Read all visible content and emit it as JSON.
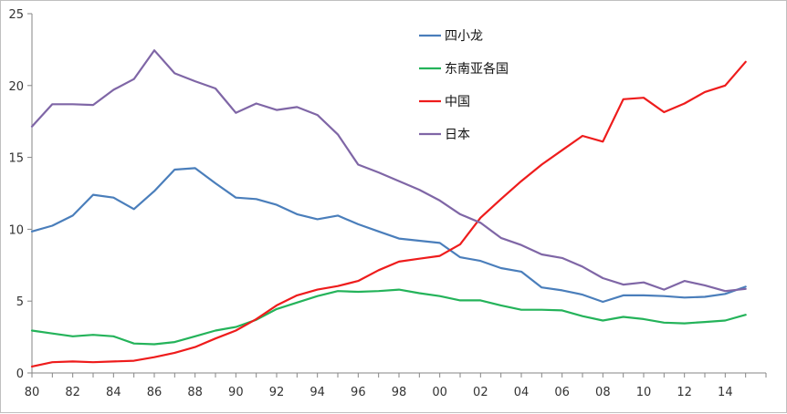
{
  "chart_data": {
    "type": "line",
    "title": "",
    "xlabel": "",
    "ylabel": "",
    "x": [
      1980,
      1981,
      1982,
      1983,
      1984,
      1985,
      1986,
      1987,
      1988,
      1989,
      1990,
      1991,
      1992,
      1993,
      1994,
      1995,
      1996,
      1997,
      1998,
      1999,
      2000,
      2001,
      2002,
      2003,
      2004,
      2005,
      2006,
      2007,
      2008,
      2009,
      2010,
      2011,
      2012,
      2013,
      2014,
      2015
    ],
    "x_tick_values": [
      1980,
      1982,
      1984,
      1986,
      1988,
      1990,
      1992,
      1994,
      1996,
      1998,
      2000,
      2002,
      2004,
      2006,
      2008,
      2010,
      2012,
      2014
    ],
    "x_tick_labels": [
      "80",
      "82",
      "84",
      "86",
      "88",
      "90",
      "92",
      "94",
      "96",
      "98",
      "00",
      "02",
      "04",
      "06",
      "08",
      "10",
      "12",
      "14"
    ],
    "y_ticks": [
      0,
      5,
      10,
      15,
      20,
      25
    ],
    "y_tick_labels": [
      "0",
      "5",
      "10",
      "15",
      "20",
      "25"
    ],
    "xlim": [
      1980,
      2016
    ],
    "ylim": [
      0,
      25
    ],
    "grid": false,
    "legend_position": "top-center",
    "series": [
      {
        "name": "四小龙",
        "color": "#4a7ebb",
        "values": [
          9.85,
          10.25,
          10.95,
          12.4,
          12.2,
          11.4,
          12.65,
          14.15,
          14.25,
          13.2,
          12.2,
          12.1,
          11.7,
          11.05,
          10.7,
          10.95,
          10.35,
          9.85,
          9.35,
          9.2,
          9.05,
          8.05,
          7.8,
          7.3,
          7.05,
          5.95,
          5.75,
          5.45,
          4.95,
          5.4,
          5.4,
          5.35,
          5.25,
          5.3,
          5.5,
          6.0
        ]
      },
      {
        "name": "东南亚各国",
        "color": "#24b35a",
        "values": [
          2.95,
          2.75,
          2.55,
          2.65,
          2.55,
          2.05,
          2.0,
          2.15,
          2.55,
          2.95,
          3.2,
          3.7,
          4.45,
          4.9,
          5.35,
          5.7,
          5.65,
          5.7,
          5.8,
          5.55,
          5.35,
          5.05,
          5.05,
          4.7,
          4.4,
          4.4,
          4.35,
          3.95,
          3.65,
          3.9,
          3.75,
          3.5,
          3.45,
          3.55,
          3.65,
          4.05
        ]
      },
      {
        "name": "中国",
        "color": "#ee1c1c",
        "values": [
          0.45,
          0.75,
          0.8,
          0.75,
          0.8,
          0.85,
          1.1,
          1.4,
          1.8,
          2.4,
          2.95,
          3.75,
          4.7,
          5.4,
          5.8,
          6.05,
          6.4,
          7.15,
          7.75,
          7.95,
          8.15,
          8.95,
          10.8,
          12.1,
          13.35,
          14.5,
          15.5,
          16.5,
          16.1,
          19.05,
          19.15,
          18.15,
          18.75,
          19.55,
          20.0,
          21.65
        ]
      },
      {
        "name": "日本",
        "color": "#7f66a6",
        "values": [
          17.15,
          18.7,
          18.7,
          18.65,
          19.7,
          20.45,
          22.45,
          20.85,
          20.3,
          19.8,
          18.1,
          18.75,
          18.3,
          18.5,
          17.95,
          16.6,
          14.5,
          13.95,
          13.35,
          12.75,
          12.0,
          11.05,
          10.45,
          9.4,
          8.9,
          8.25,
          8.0,
          7.4,
          6.6,
          6.15,
          6.3,
          5.8,
          6.4,
          6.1,
          5.7,
          5.85
        ]
      }
    ]
  }
}
